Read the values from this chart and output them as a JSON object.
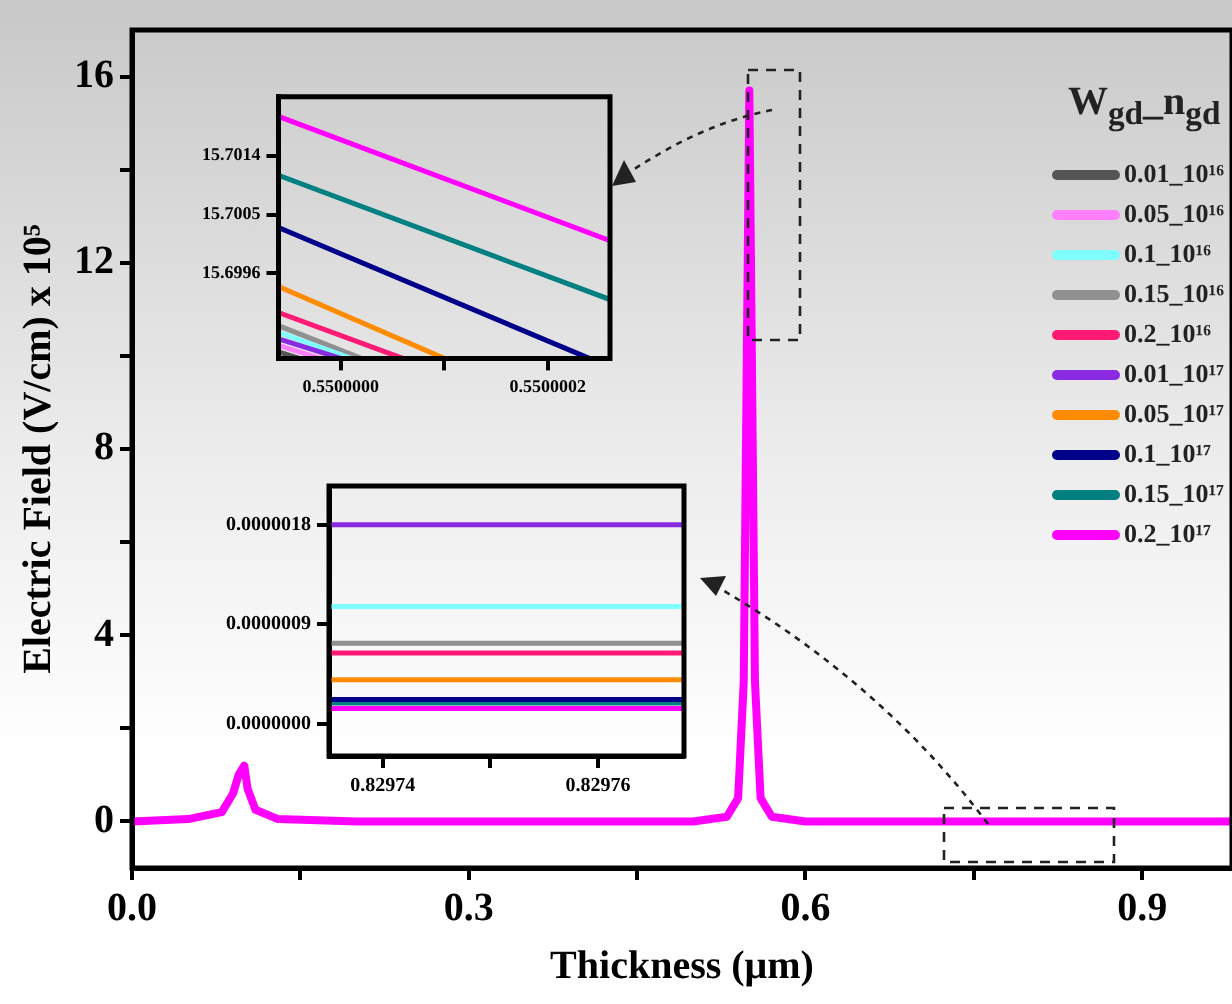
{
  "chart_data": [
    {
      "type": "line",
      "xlabel": "Thickness (μm)",
      "ylabel": "Electric Field (V/cm) x 10⁵",
      "legend_title": "W$_{gd}$_n$_{gd}$",
      "legend": "top right",
      "marker": "none",
      "line_style": "solid",
      "x": [
        0,
        0.05,
        0.08,
        0.09,
        0.095,
        0.1,
        0.103,
        0.11,
        0.13,
        0.2,
        0.5,
        0.53,
        0.54,
        0.545,
        0.55,
        0.555,
        0.56,
        0.57,
        0.6,
        0.98
      ],
      "xlim": [
        0,
        0.98
      ],
      "xticks": [
        {
          "value": 0,
          "label": "0.0"
        },
        {
          "value": 0.15,
          "label": null
        },
        0.3,
        {
          "value": 0.45,
          "label": null
        },
        0.6,
        {
          "value": 0.75,
          "label": null
        },
        0.9
      ],
      "ylim": [
        -1,
        17
      ],
      "yticks": [
        0,
        {
          "value": 2,
          "label": null
        },
        4,
        {
          "value": 6,
          "label": null
        },
        8,
        {
          "value": 10,
          "label": null
        },
        12,
        {
          "value": 14,
          "label": null
        },
        16
      ],
      "series": [
        {
          "name": "0.01_10¹⁶",
          "color": "#555555",
          "values": [
            null,
            null,
            null,
            null,
            null,
            null,
            null,
            null,
            null,
            null,
            null,
            null,
            null,
            null,
            null,
            null,
            null,
            null,
            null,
            null
          ]
        },
        {
          "name": "0.05_10¹⁶",
          "color": "#ff80ff",
          "values": [
            null,
            null,
            null,
            null,
            null,
            null,
            null,
            null,
            null,
            null,
            null,
            null,
            null,
            null,
            null,
            null,
            null,
            null,
            null,
            null
          ]
        },
        {
          "name": "0.1_10¹⁶",
          "color": "#80ffff",
          "values": [
            null,
            null,
            null,
            null,
            null,
            null,
            null,
            null,
            null,
            null,
            null,
            null,
            null,
            null,
            null,
            null,
            null,
            null,
            null,
            null
          ]
        },
        {
          "name": "0.15_10¹⁶",
          "color": "#909090",
          "values": [
            null,
            null,
            null,
            null,
            null,
            null,
            null,
            null,
            null,
            null,
            null,
            null,
            null,
            null,
            null,
            null,
            null,
            null,
            null,
            null
          ]
        },
        {
          "name": "0.2_10¹⁶",
          "color": "#ff1a75",
          "values": [
            null,
            null,
            null,
            null,
            null,
            null,
            null,
            null,
            null,
            null,
            null,
            null,
            null,
            null,
            null,
            null,
            null,
            null,
            null,
            null
          ]
        },
        {
          "name": "0.01_10¹⁷",
          "color": "#8a2be2",
          "values": [
            null,
            null,
            null,
            null,
            null,
            null,
            null,
            null,
            null,
            null,
            null,
            null,
            null,
            null,
            null,
            null,
            null,
            null,
            null,
            null
          ]
        },
        {
          "name": "0.05_10¹⁷",
          "color": "#ff8c00",
          "values": [
            null,
            null,
            null,
            null,
            null,
            null,
            null,
            null,
            null,
            null,
            null,
            null,
            null,
            null,
            null,
            null,
            null,
            null,
            null,
            null
          ]
        },
        {
          "name": "0.1_10¹⁷",
          "color": "#00008b",
          "values": [
            null,
            null,
            null,
            null,
            null,
            null,
            null,
            null,
            null,
            null,
            null,
            null,
            null,
            null,
            null,
            null,
            null,
            null,
            null,
            null
          ]
        },
        {
          "name": "0.15_10¹⁷",
          "color": "#008080",
          "values": [
            null,
            null,
            null,
            null,
            null,
            null,
            null,
            null,
            null,
            null,
            null,
            null,
            null,
            null,
            null,
            null,
            null,
            null,
            null,
            null
          ]
        },
        {
          "name": "0.2_10¹⁷",
          "color": "#ff00ff",
          "values": [
            0,
            0.05,
            0.2,
            0.6,
            1.0,
            1.2,
            0.7,
            0.25,
            0.05,
            0,
            0,
            0.1,
            0.5,
            3,
            15.7,
            3,
            0.5,
            0.1,
            0,
            0
          ]
        }
      ]
    },
    {
      "type": "line",
      "marker": "none",
      "line_style": "solid",
      "xlim": [
        0.54999994,
        0.55000026
      ],
      "xticks": [
        {
          "value": 0.55,
          "label": "0.5500000"
        },
        {
          "value": 0.5500001,
          "label": null
        },
        {
          "value": 0.5500002,
          "label": "0.5500002"
        }
      ],
      "ylim": [
        15.6983,
        15.7023
      ],
      "yticks": [
        {
          "value": 15.6996,
          "label": "15.6996"
        },
        15.7005,
        15.7014
      ],
      "series": [
        {
          "color": "#555555",
          "x": [
            0.54999994,
            0.54999996
          ],
          "values": [
            15.6984,
            15.6983
          ]
        },
        {
          "color": "#ff80ff",
          "x": [
            0.54999994,
            0.54999998
          ],
          "values": [
            15.6985,
            15.6983
          ]
        },
        {
          "color": "#8a2be2",
          "x": [
            0.54999994,
            0.55
          ],
          "values": [
            15.6986,
            15.6983
          ]
        },
        {
          "color": "#80ffff",
          "x": [
            0.54999994,
            0.55000001
          ],
          "values": [
            15.6987,
            15.6983
          ]
        },
        {
          "color": "#909090",
          "x": [
            0.54999994,
            0.55000002
          ],
          "values": [
            15.6988,
            15.6983
          ]
        },
        {
          "color": "#ff1a75",
          "x": [
            0.54999994,
            0.55000006
          ],
          "values": [
            15.699,
            15.6983
          ]
        },
        {
          "color": "#ff8c00",
          "x": [
            0.54999994,
            0.5500001
          ],
          "values": [
            15.6994,
            15.6983
          ]
        },
        {
          "color": "#00008b",
          "x": [
            0.54999994,
            0.55000024
          ],
          "values": [
            15.7003,
            15.6983
          ]
        },
        {
          "color": "#008080",
          "x": [
            0.54999994,
            0.55000026
          ],
          "values": [
            15.7011,
            15.6992
          ]
        },
        {
          "color": "#ff00ff",
          "x": [
            0.54999994,
            0.55000026
          ],
          "values": [
            15.702,
            15.7001
          ]
        }
      ]
    },
    {
      "type": "line",
      "marker": "none",
      "line_style": "solid",
      "xlim": [
        0.829735,
        0.829768
      ],
      "xticks": [
        0.82974,
        {
          "value": 0.82975,
          "label": null
        },
        0.82976
      ],
      "ylim": [
        -2.9e-07,
        2.15e-06
      ],
      "yticks": [
        {
          "value": 0,
          "label": "0.0000000"
        },
        {
          "value": 9e-07,
          "label": "0.0000009"
        },
        {
          "value": 1.8e-06,
          "label": "0.0000018"
        }
      ],
      "series": [
        {
          "color": "#8a2be2",
          "x": [
            0.829735,
            0.829768
          ],
          "values": [
            1.8e-06,
            1.8e-06
          ]
        },
        {
          "color": "#80ffff",
          "x": [
            0.829735,
            0.829768
          ],
          "values": [
            1.06e-06,
            1.06e-06
          ]
        },
        {
          "color": "#909090",
          "x": [
            0.829735,
            0.829768
          ],
          "values": [
            7.3e-07,
            7.3e-07
          ]
        },
        {
          "color": "#ff1a75",
          "x": [
            0.829735,
            0.829768
          ],
          "values": [
            6.4e-07,
            6.4e-07
          ]
        },
        {
          "color": "#ff8c00",
          "x": [
            0.829735,
            0.829768
          ],
          "values": [
            4e-07,
            4e-07
          ]
        },
        {
          "color": "#00008b",
          "x": [
            0.829735,
            0.829768
          ],
          "values": [
            2.2e-07,
            2.2e-07
          ]
        },
        {
          "color": "#008080",
          "x": [
            0.829735,
            0.829768
          ],
          "values": [
            1.9e-07,
            1.9e-07
          ]
        },
        {
          "color": "#ff00ff",
          "x": [
            0.829735,
            0.829768
          ],
          "values": [
            1.4e-07,
            1.4e-07
          ]
        }
      ]
    }
  ]
}
